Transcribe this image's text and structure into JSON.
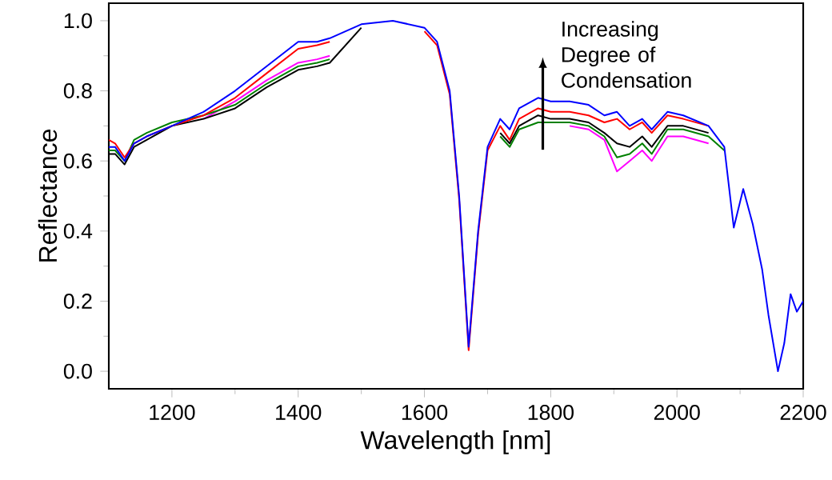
{
  "chart_data": {
    "type": "line",
    "xlabel": "Wavelength [nm]",
    "ylabel": "Reflectance",
    "x": [
      1100,
      1110,
      1125,
      1140,
      1160,
      1200,
      1250,
      1300,
      1350,
      1400,
      1430,
      1450,
      1500,
      1550,
      1600,
      1620,
      1640,
      1655,
      1670,
      1685,
      1700,
      1720,
      1735,
      1750,
      1780,
      1800,
      1830,
      1860,
      1885,
      1905,
      1925,
      1945,
      1960,
      1985,
      2010,
      2050,
      2075,
      2090,
      2105,
      2120,
      2135,
      2145,
      2160,
      2170,
      2180,
      2190,
      2200
    ],
    "series": [
      {
        "color": "#ff00ff",
        "values": [
          null,
          null,
          null,
          null,
          null,
          null,
          0.72,
          0.77,
          0.83,
          0.88,
          0.89,
          0.9,
          null,
          null,
          null,
          null,
          null,
          null,
          null,
          null,
          null,
          null,
          null,
          null,
          null,
          null,
          0.7,
          0.69,
          0.66,
          0.57,
          0.6,
          0.63,
          0.6,
          0.67,
          0.67,
          0.65,
          null,
          null,
          null,
          null,
          null,
          null,
          null,
          null,
          null,
          null,
          null
        ]
      },
      {
        "color": "#008000",
        "values": [
          0.63,
          0.63,
          0.6,
          0.66,
          0.68,
          0.71,
          0.73,
          0.76,
          0.82,
          0.87,
          0.88,
          0.89,
          null,
          null,
          null,
          null,
          null,
          null,
          null,
          null,
          null,
          0.67,
          0.64,
          0.69,
          0.71,
          0.71,
          0.71,
          0.7,
          0.67,
          0.61,
          0.62,
          0.65,
          0.62,
          0.69,
          0.69,
          0.67,
          0.63,
          null,
          null,
          null,
          null,
          null,
          null,
          null,
          null,
          null,
          null
        ]
      },
      {
        "color": "#000000",
        "values": [
          0.62,
          0.62,
          0.59,
          0.64,
          0.66,
          0.7,
          0.72,
          0.75,
          0.81,
          0.86,
          0.87,
          0.88,
          0.98,
          null,
          null,
          null,
          null,
          null,
          null,
          null,
          null,
          0.68,
          0.65,
          0.7,
          0.73,
          0.72,
          0.72,
          0.71,
          0.68,
          0.65,
          0.64,
          0.67,
          0.64,
          0.7,
          0.7,
          0.68,
          null,
          null,
          null,
          null,
          null,
          null,
          null,
          null,
          null,
          null,
          null
        ]
      },
      {
        "color": "#ff0000",
        "values": [
          0.66,
          0.65,
          0.61,
          0.65,
          0.67,
          0.7,
          0.73,
          0.78,
          0.85,
          0.92,
          0.93,
          0.94,
          null,
          null,
          0.97,
          0.93,
          0.79,
          0.49,
          0.06,
          0.39,
          0.63,
          0.7,
          0.66,
          0.72,
          0.75,
          0.74,
          0.74,
          0.73,
          0.71,
          0.72,
          0.69,
          0.71,
          0.68,
          0.73,
          0.72,
          0.7,
          null,
          null,
          null,
          null,
          null,
          null,
          null,
          null,
          null,
          null,
          null
        ]
      },
      {
        "color": "#0000ff",
        "values": [
          0.64,
          0.64,
          0.6,
          0.65,
          0.67,
          0.7,
          0.74,
          0.8,
          0.87,
          0.94,
          0.94,
          0.95,
          0.99,
          1.0,
          0.98,
          0.94,
          0.8,
          0.5,
          0.07,
          0.4,
          0.64,
          0.72,
          0.69,
          0.75,
          0.78,
          0.77,
          0.77,
          0.76,
          0.73,
          0.74,
          0.7,
          0.72,
          0.69,
          0.74,
          0.73,
          0.7,
          0.64,
          0.41,
          0.52,
          0.42,
          0.29,
          0.16,
          0.0,
          0.08,
          0.22,
          0.17,
          0.2
        ]
      }
    ],
    "xlim": [
      1100,
      2200
    ],
    "xticks": [
      1200,
      1400,
      1600,
      1800,
      2000,
      2200
    ],
    "ylim": [
      -0.05,
      1.05
    ],
    "yticks": [
      {
        "value": 0,
        "label": "0.0"
      },
      {
        "value": 0.2,
        "label": "0.2"
      },
      {
        "value": 0.4,
        "label": "0.4"
      },
      {
        "value": 0.6,
        "label": "0.6"
      },
      {
        "value": 0.8,
        "label": "0.8"
      },
      {
        "value": 1.0,
        "label": "1.0"
      }
    ],
    "annotations": [
      "Increasing Degree of Condensation"
    ],
    "grid": false,
    "legend": false,
    "marker": "none",
    "line_style": "solid"
  }
}
